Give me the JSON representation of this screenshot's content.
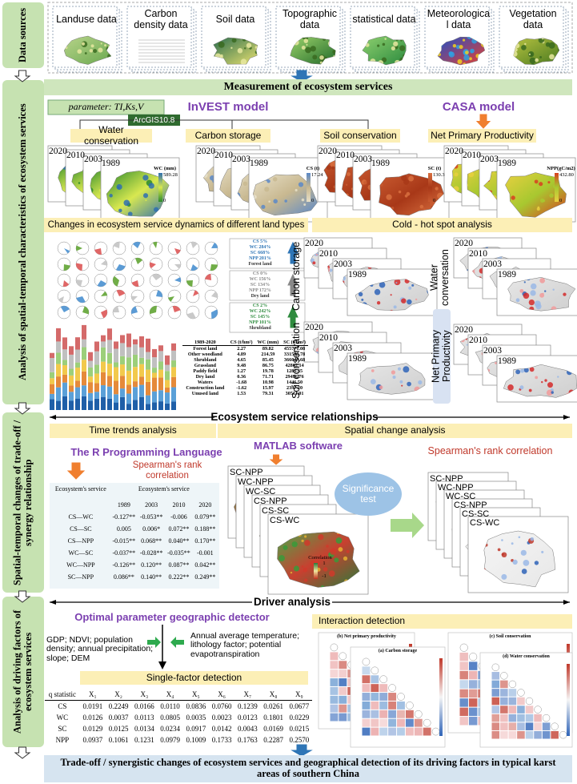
{
  "left_labels": [
    "Data sources",
    "Analysis of spatial-temporal characteristics of ecosystem services",
    "Spatial-temporal changes of trade-off / synergy relationship",
    "Analysis of driving factors of ecosystem services"
  ],
  "data_sources": [
    "Landuse data",
    "Carbon density data",
    "Soil data",
    "Topographic data",
    "statistical data",
    "Meteorologica l data",
    "Vegetation data"
  ],
  "measurement": "Measurement of ecosystem services",
  "parameter": "parameter: TI,Ks,V",
  "invest": "InVEST model",
  "arcgis": "ArcGIS10.8",
  "casa": "CASA model",
  "services": [
    "Water conservation",
    "Carbon storage",
    "Soil conservation",
    "Net Primary Productivity"
  ],
  "years": [
    "2020",
    "2010",
    "2003",
    "1989"
  ],
  "map_legends": [
    {
      "title": "WC (mm)",
      "high": "589.28",
      "low": "0"
    },
    {
      "title": "CS (t)",
      "high": "17.24",
      "low": "0"
    },
    {
      "title": "SC (t)",
      "high": "130.3",
      "low": "0"
    },
    {
      "title": "NPP(gC/m2)",
      "high": "432.80",
      "low": "0"
    }
  ],
  "land_type_title": "Changes in ecosystem service dynamics of different land types",
  "land_type_boxes": [
    [
      "CS 5%",
      "WC 284%",
      "SC 668%",
      "NPP 201%",
      "Forest land"
    ],
    [
      "CS 0%",
      "WC 156%",
      "SC 134%",
      "NPP 172%",
      "Dry land"
    ],
    [
      "CS 2%",
      "WC 242%",
      "SC 145%",
      "NPP 101%",
      "Shrubland"
    ]
  ],
  "land_table": {
    "header": [
      "1989-2020",
      "CS (t/hm²)",
      "WC (mm)",
      "SC (t/hm²)"
    ],
    "rows": [
      [
        "Forest land",
        "2.27",
        "89.82",
        "455771.08"
      ],
      [
        "Other woodland",
        "4.89",
        "214.59",
        "331596.78"
      ],
      [
        "Shrubland",
        "4.65",
        "85.45",
        "366047.68"
      ],
      [
        "Grassland",
        "9.48",
        "86.75",
        "42862.14"
      ],
      [
        "Paddy field",
        "1.27",
        "19.78",
        "1285.35"
      ],
      [
        "Dry land",
        "0.36",
        "71.71",
        "29496.76"
      ],
      [
        "Waters",
        "-1.68",
        "10.98",
        "1446.50"
      ],
      [
        "Construction land",
        "-1.62",
        "15.97",
        "2397.20"
      ],
      [
        "Unused land",
        "1.53",
        "79.31",
        "30511.01"
      ]
    ]
  },
  "hotspot_title": "Cold - hot spot analysis",
  "hotspot_labels": [
    "Carbon storage",
    "Water conversation",
    "Soil conservation",
    "Net Primary Productivity"
  ],
  "relationships": "Ecosystem service relationships",
  "time_trends": "Time trends analysis",
  "spatial_change": "Spatial change analysis",
  "r_language": "The R Programming Language",
  "spearman": "Spearman's rank correlation",
  "matlab": "MATLAB software",
  "significance": "Significance test",
  "corr_table": {
    "header": [
      "Ecosystem's service",
      "Ecosystem's service"
    ],
    "years": [
      "1989",
      "2003",
      "2010",
      "2020"
    ],
    "rows": [
      [
        "CS—WC",
        "-0.127**",
        "-0.053**",
        "-0.006",
        "0.079**"
      ],
      [
        "CS—SC",
        "0.005",
        "0.006*",
        "0.072**",
        "0.188**"
      ],
      [
        "CS—NPP",
        "-0.015**",
        "0.068**",
        "0.040**",
        "0.170**"
      ],
      [
        "WC—SC",
        "-0.037**",
        "-0.028**",
        "-0.035**",
        "-0.001"
      ],
      [
        "WC—NPP",
        "-0.126**",
        "0.120**",
        "0.087**",
        "0.042**"
      ],
      [
        "SC—NPP",
        "0.086**",
        "0.140**",
        "0.222**",
        "0.249**"
      ]
    ]
  },
  "pairs": [
    "SC-NPP",
    "WC-NPP",
    "WC-SC",
    "CS-NPP",
    "CS-SC",
    "CS-WC"
  ],
  "corr_legend": {
    "title": "Correlation",
    "high": "1",
    "low": "-1"
  },
  "driver": "Driver analysis",
  "opgd": "Optimal parameter geographic detector",
  "factors_left": "GDP; NDVI; population density; annual precipitation; slope; DEM",
  "factors_right": "Annual average temperature; lithology factor; potential evapotranspiration",
  "single_factor": "Single-factor detection",
  "q_table": {
    "header": [
      "q statistic",
      "X₁",
      "X₂",
      "X₃",
      "X₄",
      "X₅",
      "X₆",
      "X₇",
      "X₈",
      "X₉"
    ],
    "rows": [
      [
        "CS",
        "0.0191",
        "0.2249",
        "0.0166",
        "0.0110",
        "0.0836",
        "0.0760",
        "0.1239",
        "0.0261",
        "0.0677"
      ],
      [
        "WC",
        "0.0126",
        "0.0037",
        "0.0113",
        "0.0805",
        "0.0035",
        "0.0023",
        "0.0123",
        "0.1801",
        "0.0229"
      ],
      [
        "SC",
        "0.0129",
        "0.0125",
        "0.0134",
        "0.0234",
        "0.0917",
        "0.0142",
        "0.0043",
        "0.0169",
        "0.0215"
      ],
      [
        "NPP",
        "0.0937",
        "0.1061",
        "0.1231",
        "0.0979",
        "0.1009",
        "0.1733",
        "0.1763",
        "0.2287",
        "0.2570"
      ]
    ]
  },
  "interaction": "Interaction detection",
  "interaction_panels": [
    "(b) Net primary productivity",
    "(c) Soil conservation",
    "(a) Carbon storage",
    "(d) Water conservation"
  ],
  "conclusion": "Trade-off / synergistic changes of ecosystem services and geographical detection of its driving factors in typical karst areas of southern China"
}
